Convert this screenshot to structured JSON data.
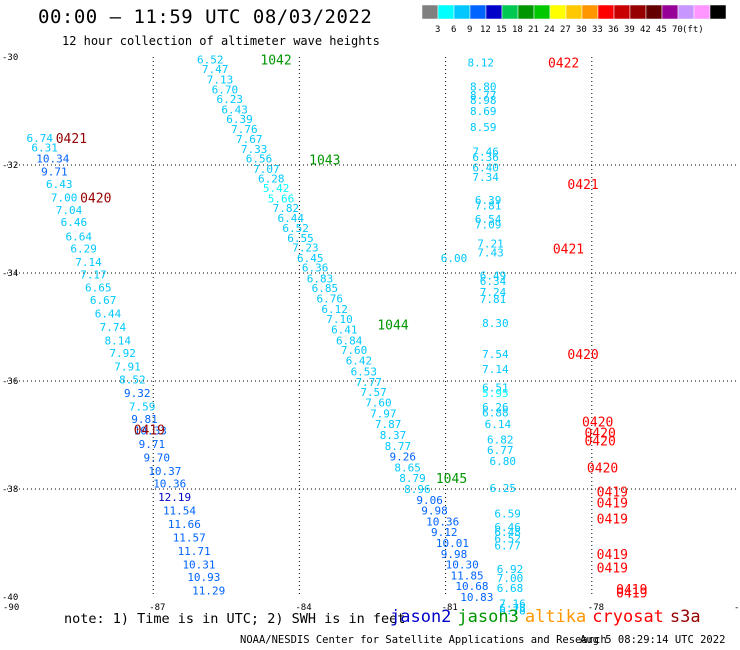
{
  "header": {
    "title": "00:00 – 11:59 UTC 08/03/2022",
    "subtitle": "12 hour collection of altimeter wave heights"
  },
  "colorbar": {
    "colors": [
      "#808080",
      "#00ffff",
      "#00c8ff",
      "#0064ff",
      "#0000c8",
      "#00c850",
      "#009600",
      "#00c800",
      "#ffff00",
      "#ffc800",
      "#ff9600",
      "#ff0000",
      "#c80000",
      "#960000",
      "#640000",
      "#960096",
      "#c896ff",
      "#ff96ff",
      "#000000"
    ],
    "labels": [
      "3",
      "6",
      "9",
      "12",
      "15",
      "18",
      "21",
      "24",
      "27",
      "30",
      "33",
      "36",
      "39",
      "42",
      "45",
      "70",
      "(ft)"
    ]
  },
  "footer": {
    "note": "note: 1) Time is in UTC; 2) SWH is in feet",
    "credit": "NOAA/NESDIS Center for Satellite Applications and Research",
    "timestamp": "Aug  5 08:29:14 UTC 2022"
  },
  "legend": [
    {
      "name": "jason2",
      "color": "#0000c8"
    },
    {
      "name": "jason3",
      "color": "#009600"
    },
    {
      "name": "altika",
      "color": "#ff9600"
    },
    {
      "name": "cryosat",
      "color": "#ff0000"
    },
    {
      "name": "s3a",
      "color": "#960000"
    }
  ],
  "chart_data": {
    "type": "scatter",
    "title": "00:00 – 11:59 UTC 08/03/2022",
    "subtitle": "12 hour collection of altimeter wave heights",
    "xlim": [
      -90,
      -75
    ],
    "ylim": [
      -40,
      -30
    ],
    "x_ticks": [
      "-90",
      "-87",
      "-84",
      "-81",
      "-78",
      "-75"
    ],
    "y_ticks": [
      "-30",
      "-32",
      "-34",
      "-36",
      "-38",
      "-40"
    ],
    "grid": true,
    "legend_position": "bottom",
    "unit": "ft",
    "tracks": [
      {
        "series": "s3a",
        "labels": [
          {
            "x": -89.0,
            "y": -31.5,
            "text": "0421"
          },
          {
            "x": -88.5,
            "y": -32.6,
            "text": "0420"
          },
          {
            "x": -87.4,
            "y": -36.9,
            "text": "0419"
          }
        ]
      },
      {
        "series": "jason3",
        "labels": [
          {
            "x": -84.8,
            "y": -30.05,
            "text": "1042"
          },
          {
            "x": -83.8,
            "y": -31.9,
            "text": "1043"
          },
          {
            "x": -82.4,
            "y": -34.95,
            "text": "1044"
          },
          {
            "x": -81.2,
            "y": -37.8,
            "text": "1045"
          }
        ]
      },
      {
        "series": "cryosat",
        "labels": [
          {
            "x": -78.9,
            "y": -30.1,
            "text": "0422"
          },
          {
            "x": -78.5,
            "y": -32.35,
            "text": "0421"
          },
          {
            "x": -78.8,
            "y": -33.55,
            "text": "0421"
          },
          {
            "x": -78.5,
            "y": -35.5,
            "text": "0420"
          },
          {
            "x": -78.2,
            "y": -36.75,
            "text": "0420"
          },
          {
            "x": -78.15,
            "y": -36.95,
            "text": "0420"
          },
          {
            "x": -78.15,
            "y": -37.1,
            "text": "0420"
          },
          {
            "x": -78.1,
            "y": -37.6,
            "text": "0420"
          },
          {
            "x": -77.9,
            "y": -38.05,
            "text": "0419"
          },
          {
            "x": -77.9,
            "y": -38.25,
            "text": "0419"
          },
          {
            "x": -77.9,
            "y": -38.55,
            "text": "0419"
          },
          {
            "x": -77.9,
            "y": -39.2,
            "text": "0419"
          },
          {
            "x": -77.9,
            "y": -39.45,
            "text": "0419"
          },
          {
            "x": -77.5,
            "y": -39.85,
            "text": "0419"
          },
          {
            "x": -77.5,
            "y": -39.92,
            "text": "0419"
          }
        ]
      }
    ],
    "points": [
      {
        "x": -89.6,
        "y": -31.5,
        "v": 6.74
      },
      {
        "x": -89.5,
        "y": -31.68,
        "v": 6.31
      },
      {
        "x": -89.4,
        "y": -31.88,
        "v": 10.34
      },
      {
        "x": -89.3,
        "y": -32.12,
        "v": 9.71
      },
      {
        "x": -89.2,
        "y": -32.35,
        "v": 6.43
      },
      {
        "x": -89.1,
        "y": -32.6,
        "v": 7.0
      },
      {
        "x": -89.0,
        "y": -32.83,
        "v": 7.04
      },
      {
        "x": -88.9,
        "y": -33.06,
        "v": 6.46
      },
      {
        "x": -88.8,
        "y": -33.32,
        "v": 6.64
      },
      {
        "x": -88.7,
        "y": -33.55,
        "v": 6.29
      },
      {
        "x": -88.6,
        "y": -33.8,
        "v": 7.14
      },
      {
        "x": -88.5,
        "y": -34.03,
        "v": 7.17
      },
      {
        "x": -88.4,
        "y": -34.27,
        "v": 6.65
      },
      {
        "x": -88.3,
        "y": -34.5,
        "v": 6.67
      },
      {
        "x": -88.2,
        "y": -34.75,
        "v": 6.44
      },
      {
        "x": -88.1,
        "y": -35.0,
        "v": 7.74
      },
      {
        "x": -88.0,
        "y": -35.25,
        "v": 8.14
      },
      {
        "x": -87.9,
        "y": -35.48,
        "v": 7.92
      },
      {
        "x": -87.8,
        "y": -35.73,
        "v": 7.91
      },
      {
        "x": -87.7,
        "y": -35.97,
        "v": 8.52
      },
      {
        "x": -87.6,
        "y": -36.22,
        "v": 9.32
      },
      {
        "x": -87.5,
        "y": -36.47,
        "v": 7.59
      },
      {
        "x": -87.45,
        "y": -36.7,
        "v": 9.81
      },
      {
        "x": -87.4,
        "y": -36.92,
        "v": 10.33
      },
      {
        "x": -87.3,
        "y": -37.17,
        "v": 9.71
      },
      {
        "x": -87.2,
        "y": -37.42,
        "v": 9.7
      },
      {
        "x": -87.1,
        "y": -37.67,
        "v": 10.37
      },
      {
        "x": -87.0,
        "y": -37.9,
        "v": 10.36
      },
      {
        "x": -86.9,
        "y": -38.15,
        "v": 12.19
      },
      {
        "x": -86.8,
        "y": -38.4,
        "v": 11.54
      },
      {
        "x": -86.7,
        "y": -38.65,
        "v": 11.66
      },
      {
        "x": -86.6,
        "y": -38.9,
        "v": 11.57
      },
      {
        "x": -86.5,
        "y": -39.15,
        "v": 11.71
      },
      {
        "x": -86.4,
        "y": -39.4,
        "v": 10.31
      },
      {
        "x": -86.3,
        "y": -39.63,
        "v": 10.93
      },
      {
        "x": -86.2,
        "y": -39.88,
        "v": 11.29
      },
      {
        "x": -86.1,
        "y": -30.05,
        "v": 6.52
      },
      {
        "x": -86.0,
        "y": -30.22,
        "v": 7.47
      },
      {
        "x": -85.9,
        "y": -30.42,
        "v": 7.13
      },
      {
        "x": -85.8,
        "y": -30.6,
        "v": 6.7
      },
      {
        "x": -85.7,
        "y": -30.78,
        "v": 6.23
      },
      {
        "x": -85.6,
        "y": -30.97,
        "v": 6.43
      },
      {
        "x": -85.5,
        "y": -31.15,
        "v": 6.39
      },
      {
        "x": -85.4,
        "y": -31.33,
        "v": 7.76
      },
      {
        "x": -85.3,
        "y": -31.52,
        "v": 7.67
      },
      {
        "x": -85.2,
        "y": -31.7,
        "v": 7.33
      },
      {
        "x": -85.1,
        "y": -31.88,
        "v": 6.56
      },
      {
        "x": -84.95,
        "y": -32.07,
        "v": 7.07
      },
      {
        "x": -84.85,
        "y": -32.25,
        "v": 6.28
      },
      {
        "x": -84.75,
        "y": -32.43,
        "v": 5.42
      },
      {
        "x": -84.65,
        "y": -32.62,
        "v": 5.66
      },
      {
        "x": -84.55,
        "y": -32.8,
        "v": 7.82
      },
      {
        "x": -84.45,
        "y": -32.98,
        "v": 6.44
      },
      {
        "x": -84.35,
        "y": -33.17,
        "v": 6.52
      },
      {
        "x": -84.25,
        "y": -33.35,
        "v": 6.55
      },
      {
        "x": -84.15,
        "y": -33.53,
        "v": 7.23
      },
      {
        "x": -84.05,
        "y": -33.72,
        "v": 6.45
      },
      {
        "x": -83.95,
        "y": -33.9,
        "v": 6.36
      },
      {
        "x": -83.85,
        "y": -34.1,
        "v": 6.83
      },
      {
        "x": -83.75,
        "y": -34.28,
        "v": 6.85
      },
      {
        "x": -83.65,
        "y": -34.47,
        "v": 6.76
      },
      {
        "x": -83.55,
        "y": -34.67,
        "v": 6.12
      },
      {
        "x": -83.45,
        "y": -34.85,
        "v": 7.1
      },
      {
        "x": -83.35,
        "y": -35.05,
        "v": 6.41
      },
      {
        "x": -83.25,
        "y": -35.25,
        "v": 6.84
      },
      {
        "x": -83.15,
        "y": -35.43,
        "v": 7.6
      },
      {
        "x": -83.05,
        "y": -35.62,
        "v": 6.42
      },
      {
        "x": -82.95,
        "y": -35.82,
        "v": 6.53
      },
      {
        "x": -82.85,
        "y": -36.02,
        "v": 7.77
      },
      {
        "x": -82.75,
        "y": -36.2,
        "v": 7.57
      },
      {
        "x": -82.65,
        "y": -36.4,
        "v": 7.6
      },
      {
        "x": -82.55,
        "y": -36.6,
        "v": 7.97
      },
      {
        "x": -82.45,
        "y": -36.8,
        "v": 7.87
      },
      {
        "x": -82.35,
        "y": -37.0,
        "v": 8.37
      },
      {
        "x": -82.25,
        "y": -37.2,
        "v": 8.77
      },
      {
        "x": -82.15,
        "y": -37.4,
        "v": 9.26
      },
      {
        "x": -82.05,
        "y": -37.6,
        "v": 8.65
      },
      {
        "x": -81.95,
        "y": -37.8,
        "v": 8.79
      },
      {
        "x": -81.85,
        "y": -38.0,
        "v": 8.96
      },
      {
        "x": -81.6,
        "y": -38.2,
        "v": 9.06
      },
      {
        "x": -81.5,
        "y": -38.4,
        "v": 9.98
      },
      {
        "x": -81.4,
        "y": -38.6,
        "v": 10.36
      },
      {
        "x": -81.3,
        "y": -38.8,
        "v": 9.12
      },
      {
        "x": -81.2,
        "y": -39.0,
        "v": 10.01
      },
      {
        "x": -81.1,
        "y": -39.2,
        "v": 9.98
      },
      {
        "x": -81.0,
        "y": -39.4,
        "v": 10.3
      },
      {
        "x": -80.9,
        "y": -39.6,
        "v": 11.85
      },
      {
        "x": -80.8,
        "y": -39.8,
        "v": 10.68
      },
      {
        "x": -80.7,
        "y": -40.0,
        "v": 10.83
      },
      {
        "x": -80.55,
        "y": -30.1,
        "v": 8.12
      },
      {
        "x": -80.5,
        "y": -30.55,
        "v": 8.8
      },
      {
        "x": -80.5,
        "y": -30.7,
        "v": 8.77
      },
      {
        "x": -80.5,
        "y": -30.8,
        "v": 8.98
      },
      {
        "x": -80.5,
        "y": -31.0,
        "v": 8.69
      },
      {
        "x": -80.5,
        "y": -31.3,
        "v": 8.59
      },
      {
        "x": -80.45,
        "y": -31.75,
        "v": 7.46
      },
      {
        "x": -80.45,
        "y": -31.85,
        "v": 6.36
      },
      {
        "x": -80.45,
        "y": -32.05,
        "v": 6.4
      },
      {
        "x": -80.45,
        "y": -32.22,
        "v": 7.34
      },
      {
        "x": -80.4,
        "y": -32.65,
        "v": 6.39
      },
      {
        "x": -80.4,
        "y": -32.75,
        "v": 7.81
      },
      {
        "x": -80.4,
        "y": -33.0,
        "v": 6.54
      },
      {
        "x": -80.4,
        "y": -33.1,
        "v": 7.09
      },
      {
        "x": -80.35,
        "y": -33.45,
        "v": 7.21
      },
      {
        "x": -80.35,
        "y": -33.62,
        "v": 7.43
      },
      {
        "x": -80.3,
        "y": -34.05,
        "v": 6.49
      },
      {
        "x": -80.3,
        "y": -34.15,
        "v": 6.34
      },
      {
        "x": -80.3,
        "y": -34.35,
        "v": 7.24
      },
      {
        "x": -80.3,
        "y": -34.48,
        "v": 7.81
      },
      {
        "x": -80.25,
        "y": -34.93,
        "v": 8.3
      },
      {
        "x": -80.25,
        "y": -35.5,
        "v": 7.54
      },
      {
        "x": -80.25,
        "y": -35.78,
        "v": 7.14
      },
      {
        "x": -80.25,
        "y": -36.12,
        "v": 6.51
      },
      {
        "x": -80.25,
        "y": -36.22,
        "v": 5.95
      },
      {
        "x": -80.25,
        "y": -36.48,
        "v": 6.26
      },
      {
        "x": -80.25,
        "y": -36.58,
        "v": 6.88
      },
      {
        "x": -80.2,
        "y": -36.8,
        "v": 6.14
      },
      {
        "x": -80.15,
        "y": -37.08,
        "v": 6.82
      },
      {
        "x": -80.15,
        "y": -37.28,
        "v": 6.77
      },
      {
        "x": -80.1,
        "y": -37.48,
        "v": 6.8
      },
      {
        "x": -80.1,
        "y": -37.98,
        "v": 6.25
      },
      {
        "x": -80.0,
        "y": -38.45,
        "v": 6.59
      },
      {
        "x": -80.0,
        "y": -38.7,
        "v": 6.46
      },
      {
        "x": -80.0,
        "y": -38.8,
        "v": 6.48
      },
      {
        "x": -80.0,
        "y": -38.92,
        "v": 6.52
      },
      {
        "x": -80.0,
        "y": -39.05,
        "v": 6.77
      },
      {
        "x": -79.95,
        "y": -39.48,
        "v": 6.92
      },
      {
        "x": -79.95,
        "y": -39.65,
        "v": 7.0
      },
      {
        "x": -79.95,
        "y": -39.83,
        "v": 6.68
      },
      {
        "x": -79.9,
        "y": -40.12,
        "v": 7.16
      },
      {
        "x": -79.9,
        "y": -40.2,
        "v": 6.78
      },
      {
        "x": -79.9,
        "y": -40.25,
        "v": 6.78
      },
      {
        "x": -81.1,
        "y": -33.72,
        "v": 6.0
      }
    ]
  }
}
